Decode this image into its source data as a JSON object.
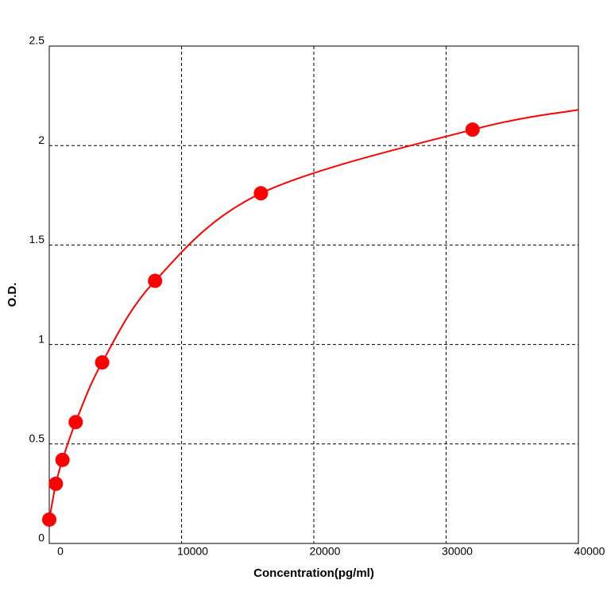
{
  "chart_data": {
    "type": "scatter",
    "xlabel": "Concentration(pg/ml)",
    "ylabel": "O.D.",
    "x": [
      0,
      500,
      1000,
      2000,
      4000,
      8000,
      16000,
      32000
    ],
    "values": [
      0.12,
      0.3,
      0.42,
      0.61,
      0.91,
      1.32,
      1.76,
      2.08
    ],
    "color": "#ff0000",
    "curve": {
      "x": [
        0,
        500,
        1000,
        2000,
        4000,
        8000,
        16000,
        32000,
        40000
      ],
      "values": [
        0.12,
        0.3,
        0.42,
        0.61,
        0.91,
        1.32,
        1.76,
        2.08,
        2.18
      ]
    },
    "xlim": [
      0,
      40000
    ],
    "xticks": [
      0,
      10000,
      20000,
      30000,
      40000
    ],
    "ylim": [
      0,
      2.5
    ],
    "yticks": [
      0,
      0.5,
      1,
      1.5,
      2,
      2.5
    ],
    "grid": true
  }
}
